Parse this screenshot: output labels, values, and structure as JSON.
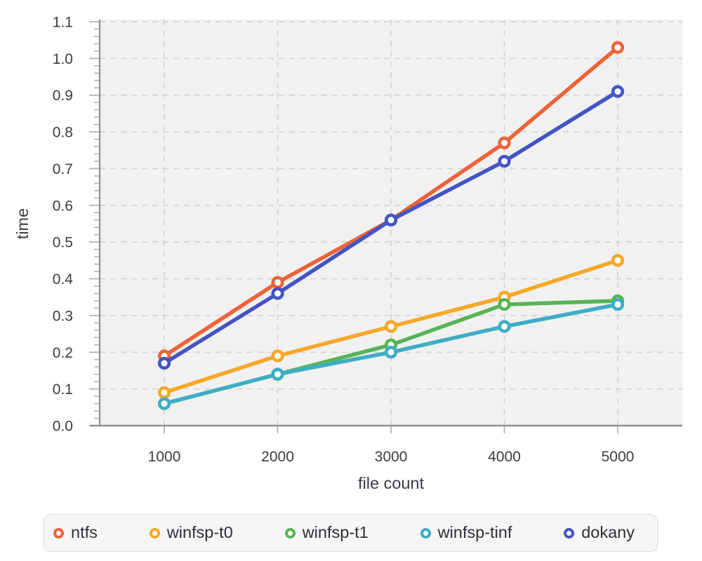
{
  "chart_data": {
    "type": "line",
    "x": [
      1000,
      2000,
      3000,
      4000,
      5000
    ],
    "series": [
      {
        "name": "ntfs",
        "color": "#ed6337",
        "values": [
          0.19,
          0.39,
          0.56,
          0.77,
          1.03
        ]
      },
      {
        "name": "winfsp-t0",
        "color": "#f7a827",
        "values": [
          0.09,
          0.19,
          0.27,
          0.35,
          0.45
        ]
      },
      {
        "name": "winfsp-t1",
        "color": "#57b457",
        "values": [
          0.06,
          0.14,
          0.22,
          0.33,
          0.34
        ]
      },
      {
        "name": "winfsp-tinf",
        "color": "#3fadc5",
        "values": [
          0.06,
          0.14,
          0.2,
          0.27,
          0.33
        ]
      },
      {
        "name": "dokany",
        "color": "#4355c4",
        "values": [
          0.17,
          0.36,
          0.56,
          0.72,
          0.91
        ]
      }
    ],
    "title": "",
    "xlabel": "file count",
    "ylabel": "time",
    "x_ticks": [
      1000,
      2000,
      3000,
      4000,
      5000
    ],
    "x_domain": [
      430,
      5570
    ],
    "ylim": [
      0,
      1.1
    ],
    "y_tick_step": 0.1,
    "y_minor_step": 0.02,
    "grid": true,
    "grid_style": "dashed",
    "legend_position": "bottom",
    "legend_entries": [
      "ntfs",
      "winfsp-t0",
      "winfsp-t1",
      "winfsp-tinf",
      "dokany"
    ],
    "colors": {
      "plot_background": "#f1f1f1",
      "gridline": "#d3d3d3",
      "axis_line": "#8f8f8f",
      "tick": "#b4b4b4",
      "tick_label": "#3c3c43",
      "axis_title": "#3c3c43"
    }
  }
}
